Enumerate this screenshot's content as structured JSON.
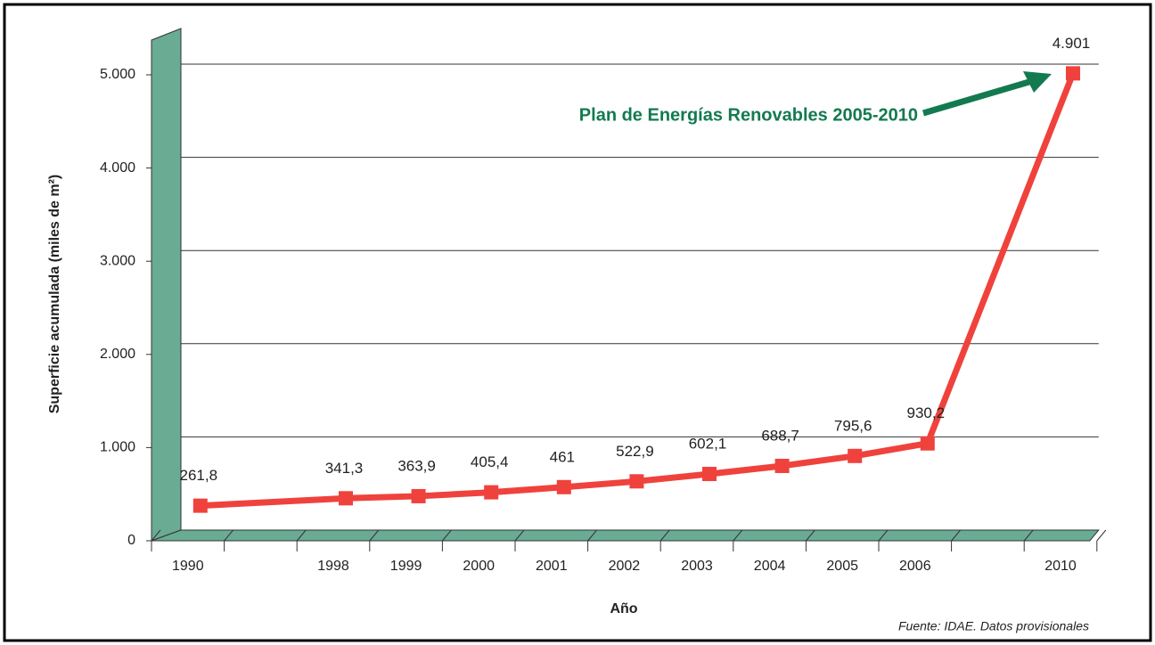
{
  "chart_data": {
    "type": "line",
    "y_label": "Superficie acumulada (miles de m²)",
    "x_label": "Año",
    "annotation": "Plan de Energías Renovables 2005-2010",
    "source": "Fuente: IDAE. Datos provisionales",
    "categories": [
      "1990",
      null,
      "1998",
      "1999",
      "2000",
      "2001",
      "2002",
      "2003",
      "2004",
      "2005",
      "2006",
      null,
      "2010"
    ],
    "series": [
      {
        "color": "#f0423c",
        "values": [
          261.8,
          null,
          341.3,
          363.9,
          405.4,
          461,
          522.9,
          602.1,
          688.7,
          795.6,
          930.2,
          null,
          4901
        ],
        "value_labels": [
          "261,8",
          null,
          "341,3",
          "363,9",
          "405,4",
          "461",
          "522,9",
          "602,1",
          "688,7",
          "795,6",
          "930,2",
          null,
          "4.901"
        ]
      }
    ],
    "ylim": [
      0,
      5000
    ],
    "yticks": [
      0,
      {
        "value": 1000,
        "label": "1.000"
      },
      {
        "value": 2000,
        "label": "2.000"
      },
      {
        "value": 3000,
        "label": "3.000"
      },
      {
        "value": 4000,
        "label": "4.000"
      },
      {
        "value": 5000,
        "label": "5.000"
      }
    ],
    "grid": true,
    "wall_color": "#6aab94",
    "annotation_color": "#137a50"
  }
}
